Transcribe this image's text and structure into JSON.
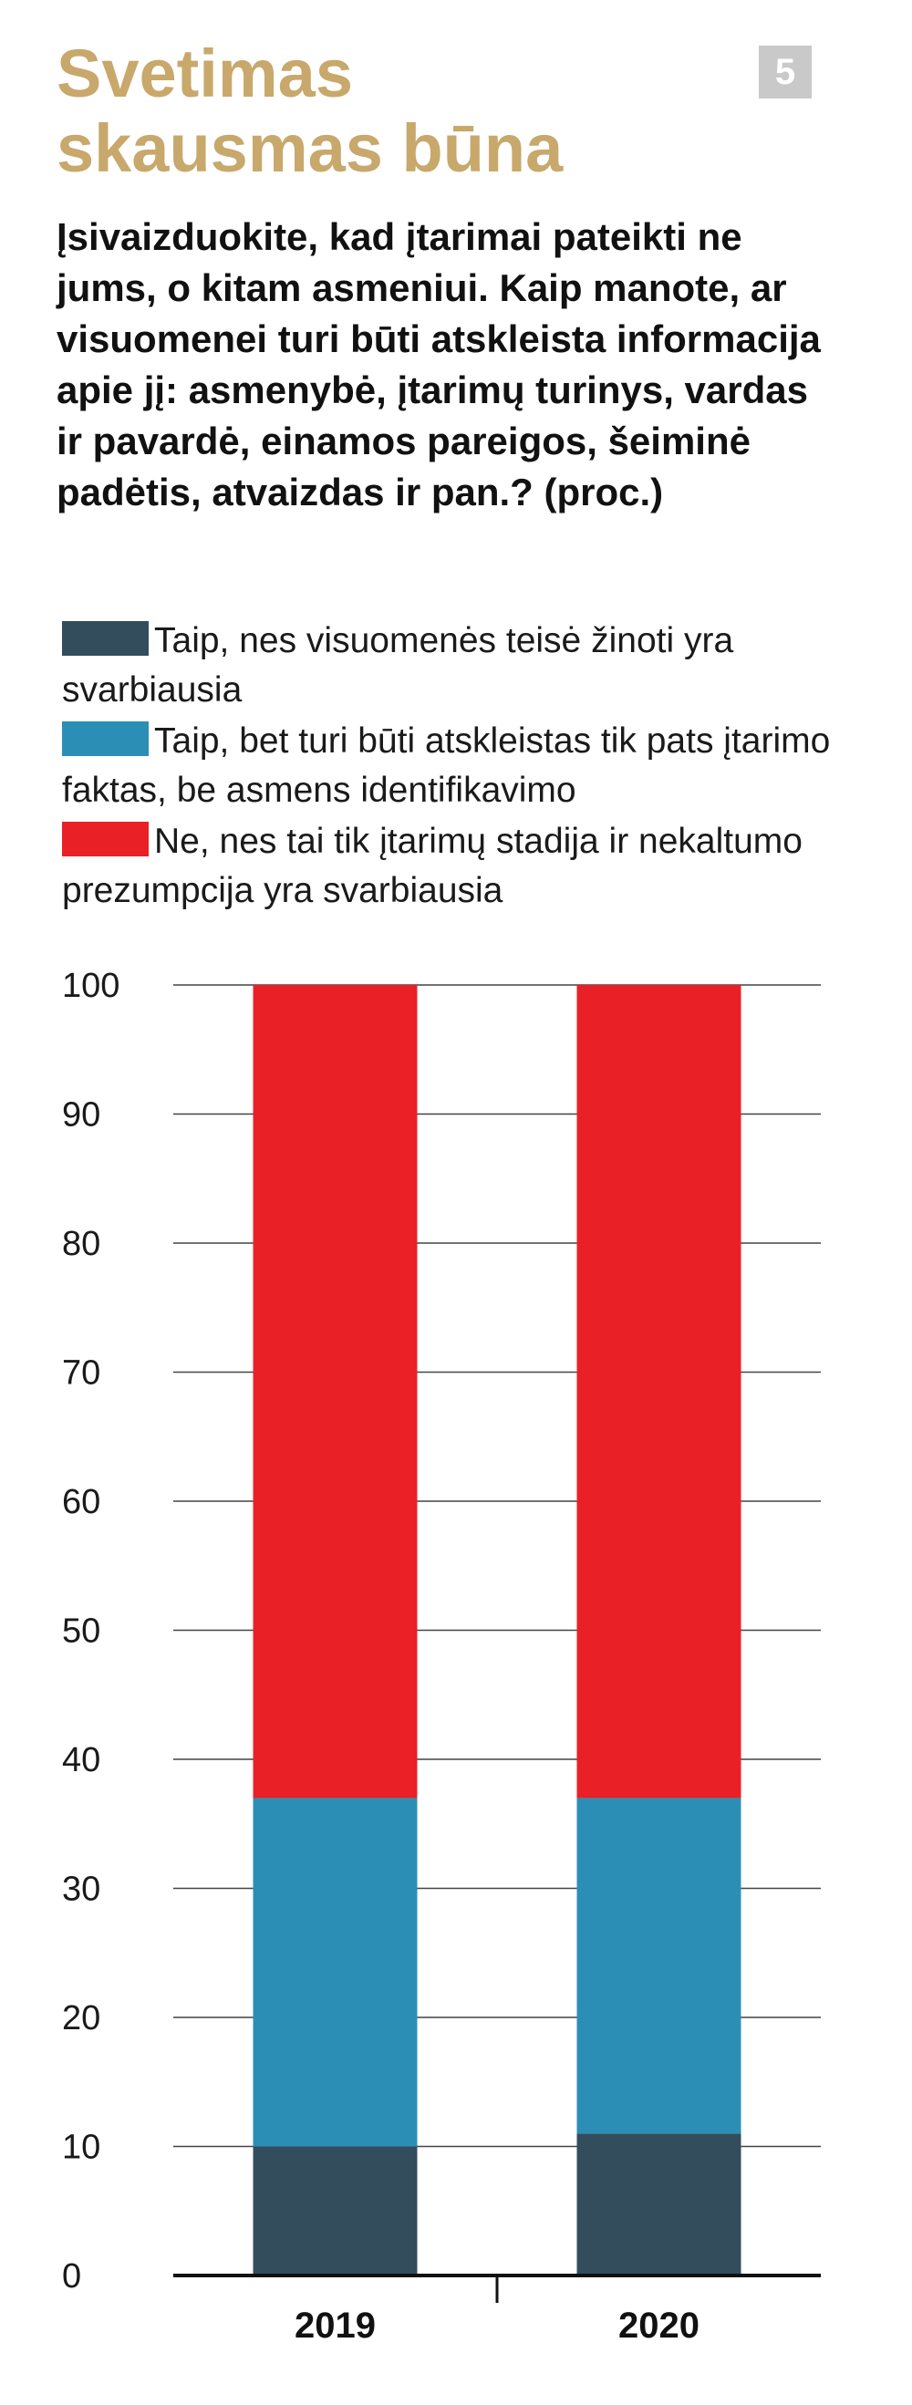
{
  "header": {
    "title_line1": "Svetimas",
    "title_line2": "skausmas būna",
    "badge": "5",
    "question": "Įsivaizduokite, kad įtarimai pateikti ne jums, o kitam asmeniui. Kaip manote, ar visuomenei turi būti atskleista informacija apie jį: asmenybė, įtarimų turinys, vardas ir pavardė, einamos pareigos, šeiminė padėtis, atvaizdas ir pan.? (proc.)"
  },
  "colors": {
    "title": "#c8a86b",
    "badge": "#c9c9c9",
    "series_dark": "#334d5c",
    "series_blue": "#2b8fb5",
    "series_red": "#ea2027"
  },
  "chart_data": {
    "type": "bar",
    "stacked": true,
    "categories": [
      "2019",
      "2020"
    ],
    "series": [
      {
        "name": "Taip, nes visuomenės teisė žinoti yra svarbiausia",
        "color": "#334d5c",
        "values": [
          10,
          11
        ]
      },
      {
        "name": "Taip, bet turi būti atskleistas tik pats įtarimo faktas, be asmens identifikavimo",
        "color": "#2b8fb5",
        "values": [
          27,
          26
        ]
      },
      {
        "name": "Ne, nes tai tik įtarimų stadija ir nekaltumo prezumpcija yra svarbiausia",
        "color": "#ea2027",
        "values": [
          63,
          63
        ]
      }
    ],
    "title": "",
    "xlabel": "",
    "ylabel": "",
    "ylim": [
      0,
      100
    ],
    "yticks": [
      0,
      10,
      20,
      30,
      40,
      50,
      60,
      70,
      80,
      90,
      100
    ],
    "grid": true,
    "legend": "top"
  }
}
